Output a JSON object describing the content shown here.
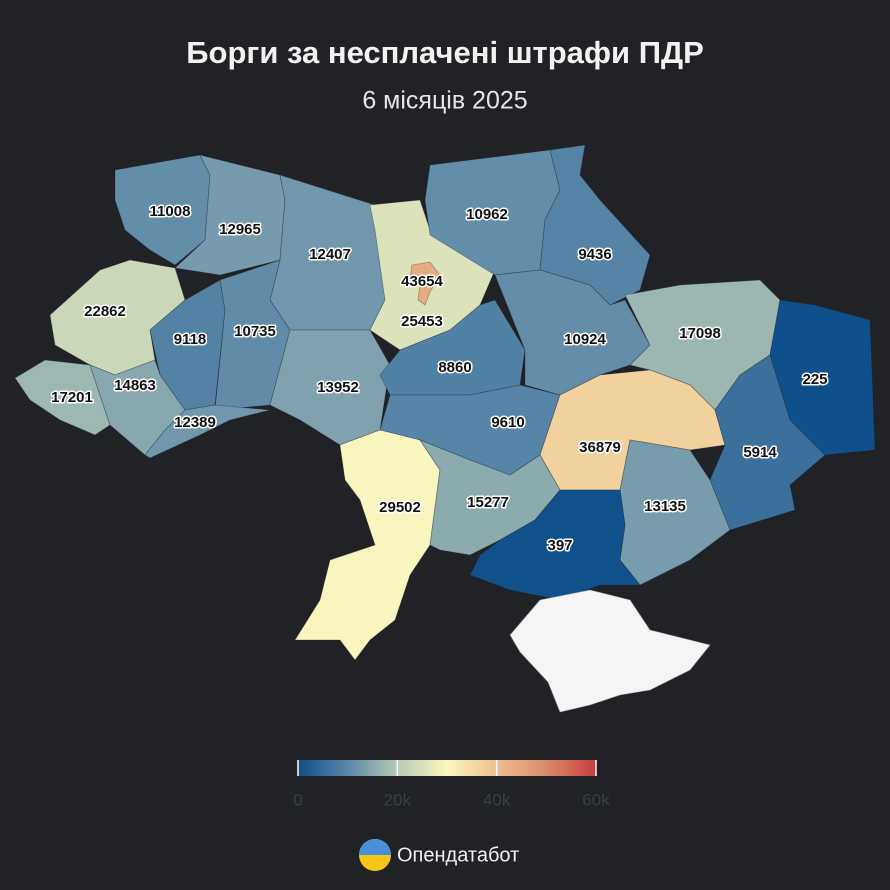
{
  "chart_data": {
    "type": "choropleth",
    "title": "Борги за несплачені штрафи ПДР",
    "subtitle": "6 місяців 2025",
    "values": [
      11008,
      12965,
      12407,
      43654,
      25453,
      10962,
      9436,
      22862,
      9118,
      10735,
      17201,
      14863,
      12389,
      13952,
      8860,
      10924,
      17098,
      225,
      9610,
      36879,
      5914,
      29502,
      15277,
      13135,
      397
    ],
    "colorscale": {
      "lim": [
        0,
        60000
      ],
      "colors": [
        "#0d4f8b",
        "#5a87a8",
        "#b7cbb6",
        "#fbf7bf",
        "#edc08f",
        "#db8a6b",
        "#c6403e"
      ],
      "ticks": [
        0,
        {
          "value": 20000,
          "label": "20k"
        },
        {
          "value": 40000,
          "label": "40k"
        },
        {
          "value": 60000,
          "label": "60k"
        }
      ]
    },
    "source": "Опендатабот"
  }
}
